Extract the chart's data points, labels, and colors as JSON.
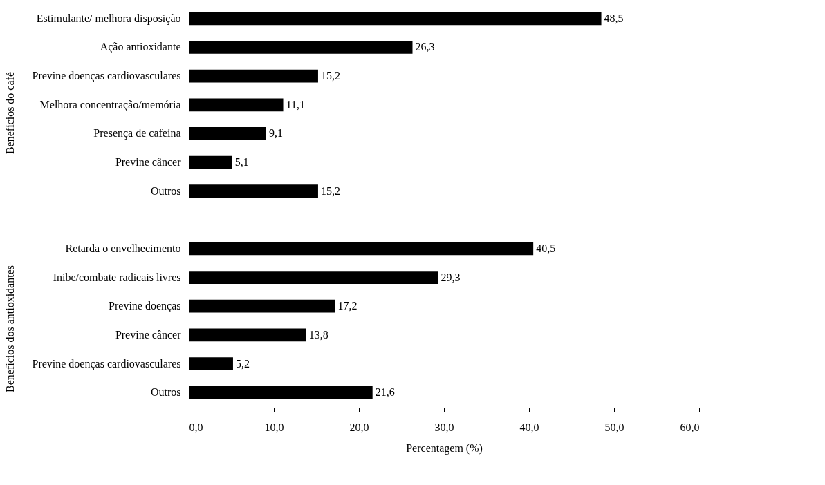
{
  "chart_data": {
    "type": "bar",
    "orientation": "horizontal",
    "categories": [
      "Estimulante/ melhora disposição",
      "Ação antioxidante",
      "Previne doenças cardiovasculares",
      "Melhora concentração/memória",
      "Presença de cafeína",
      "Previne câncer",
      "Outros",
      null,
      "Retarda o envelhecimento",
      "Inibe/combate radicais livres",
      "Previne doenças ",
      "Previne câncer",
      "Previne doenças cardiovasculares",
      "Outros"
    ],
    "values": [
      48.5,
      26.3,
      15.2,
      11.1,
      9.1,
      5.1,
      15.2,
      null,
      40.5,
      29.3,
      17.2,
      13.8,
      5.2,
      21.6
    ],
    "value_labels": [
      "48,5",
      "26,3",
      "15,2",
      "11,1",
      "9,1",
      "5,1",
      "15,2",
      null,
      "40,5",
      "29,3",
      "17,2",
      "13,8",
      "5,2",
      "21,6"
    ],
    "color": "#000000",
    "xlim": [
      0,
      60
    ],
    "xticks": [
      {
        "value": 0,
        "label": "0,0"
      },
      {
        "value": 10,
        "label": "10,0"
      },
      {
        "value": 20,
        "label": "20,0"
      },
      {
        "value": 30,
        "label": "30,0"
      },
      {
        "value": 40,
        "label": "40,0"
      },
      {
        "value": 50,
        "label": "50,0"
      },
      {
        "value": 60,
        "label": "60,0"
      }
    ],
    "xlabel": "Percentagem (%)",
    "annotations": [
      "Benefícios do café",
      "Benefícios dos antioxidantes"
    ],
    "grid": false
  }
}
